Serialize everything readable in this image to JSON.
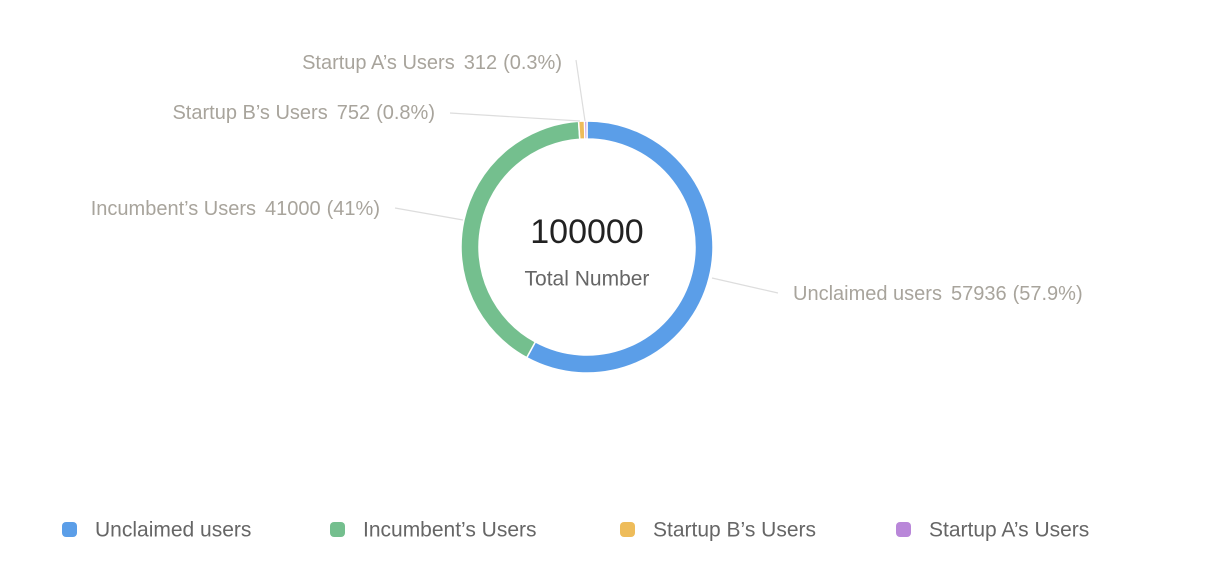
{
  "chart_data": {
    "type": "donut",
    "center_value": 100000,
    "center_label": "Total Number",
    "categories": [
      "Unclaimed users",
      "Incumbent’s Users",
      "Startup B’s Users",
      "Startup A’s Users"
    ],
    "values": [
      57936,
      41000,
      752,
      312
    ],
    "percent_labels": [
      "(57.9%)",
      "(41%)",
      "(0.8%)",
      "(0.3%)"
    ],
    "colors": [
      "#5b9ee8",
      "#74bf8e",
      "#eebc5a",
      "#b987d9"
    ],
    "legend": "bottom"
  }
}
